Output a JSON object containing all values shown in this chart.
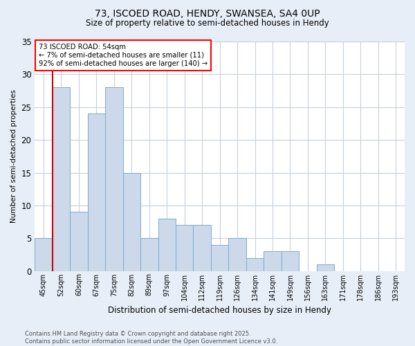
{
  "title1": "73, ISCOED ROAD, HENDY, SWANSEA, SA4 0UP",
  "title2": "Size of property relative to semi-detached houses in Hendy",
  "xlabel": "Distribution of semi-detached houses by size in Hendy",
  "ylabel": "Number of semi-detached properties",
  "categories": [
    "45sqm",
    "52sqm",
    "60sqm",
    "67sqm",
    "75sqm",
    "82sqm",
    "89sqm",
    "97sqm",
    "104sqm",
    "112sqm",
    "119sqm",
    "126sqm",
    "134sqm",
    "141sqm",
    "149sqm",
    "156sqm",
    "163sqm",
    "171sqm",
    "178sqm",
    "186sqm",
    "193sqm"
  ],
  "values": [
    5,
    28,
    9,
    24,
    28,
    15,
    5,
    8,
    7,
    7,
    4,
    5,
    2,
    3,
    3,
    0,
    1,
    0,
    0,
    0,
    0
  ],
  "bar_color": "#ccd9ea",
  "bar_edgecolor": "#7aaad0",
  "redline_index": 1,
  "redline_color": "#cc0000",
  "ylim": [
    0,
    35
  ],
  "yticks": [
    0,
    5,
    10,
    15,
    20,
    25,
    30,
    35
  ],
  "annotation_title": "73 ISCOED ROAD: 54sqm",
  "annotation_line1": "← 7% of semi-detached houses are smaller (11)",
  "annotation_line2": "92% of semi-detached houses are larger (140) →",
  "footer1": "Contains HM Land Registry data © Crown copyright and database right 2025.",
  "footer2": "Contains public sector information licensed under the Open Government Licence v3.0.",
  "bg_color": "#e8eef8",
  "plot_bg_color": "#ffffff",
  "grid_color": "#c8d0dc"
}
